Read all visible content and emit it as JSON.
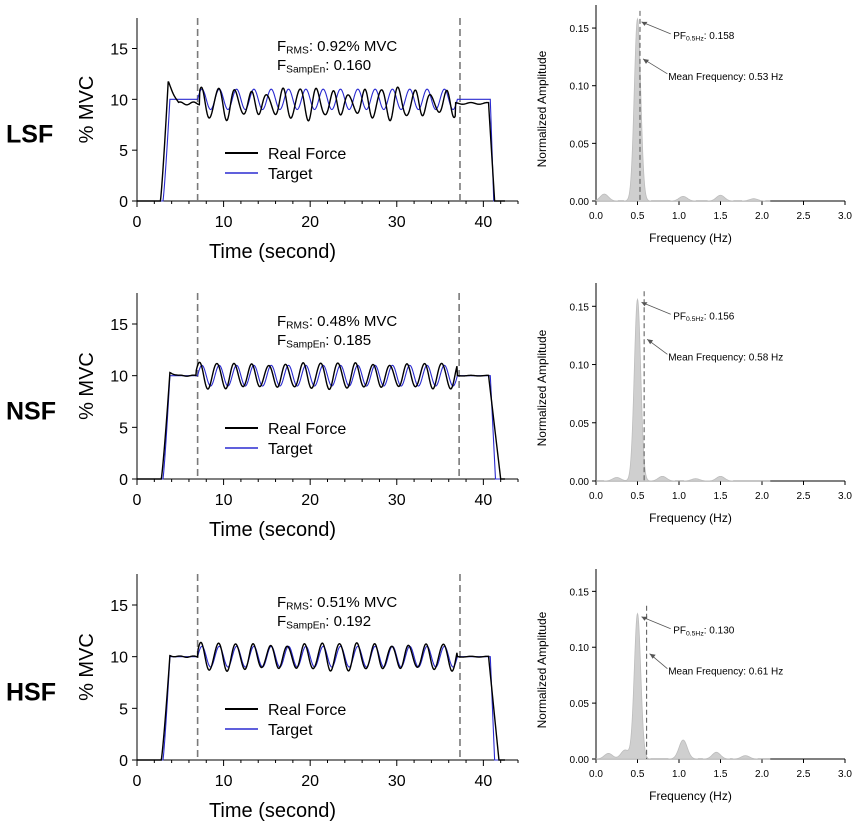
{
  "panels": [
    {
      "row_label": "LSF",
      "force_chart": {
        "type": "line",
        "xlabel": "Time (second)",
        "ylabel": "% MVC",
        "xlim": [
          0,
          44
        ],
        "ylim": [
          0,
          18
        ],
        "xticks": [
          0,
          10,
          20,
          30,
          40
        ],
        "yticks": [
          0,
          5,
          10,
          15
        ],
        "window_lines": [
          7,
          37.3
        ],
        "rms_prefix": "F",
        "rms_sub": "RMS",
        "rms_value": ": 0.92% MVC",
        "sampen_prefix": "F",
        "sampen_sub": "SampEn",
        "sampen_value": ": 0.160",
        "legend": [
          "Real Force",
          "Target"
        ],
        "series": [
          {
            "name": "Real Force",
            "color": "#000000",
            "profile": {
              "start": 2.7,
              "rise_end": 3.6,
              "overshoot": 11.7,
              "osc_start": 7.2,
              "osc_end": 36.8,
              "fall_start": 40.6,
              "fall_end": 41.3,
              "freq": 0.53,
              "amp": 1.25,
              "level": 9.6,
              "phase": 0.6,
              "irregular": 0.55
            }
          },
          {
            "name": "Target",
            "color": "#2b2bd0",
            "profile": {
              "start": 3.0,
              "rise_end": 3.8,
              "overshoot": 10.0,
              "osc_start": 7.0,
              "osc_end": 37.0,
              "fall_start": 40.8,
              "fall_end": 41.2,
              "freq": 0.5,
              "amp": 1.0,
              "level": 10.0,
              "phase": 0.0,
              "irregular": 0.0
            }
          }
        ]
      },
      "spectrum_chart": {
        "type": "area",
        "xlabel": "Frequency (Hz)",
        "ylabel": "Normalized Amplitude",
        "xlim": [
          0.0,
          3.0
        ],
        "ylim": [
          0.0,
          0.17
        ],
        "xticks": [
          "0.0",
          "0.5",
          "1.0",
          "1.5",
          "2.0",
          "2.5",
          "3.0"
        ],
        "yticks": [
          "0.00",
          "0.05",
          "0.10",
          "0.15"
        ],
        "peak_freq": 0.5,
        "peak_value": 0.158,
        "mean_freq": 0.53,
        "secondary_peaks": [
          [
            0.1,
            0.006
          ],
          [
            1.05,
            0.004
          ],
          [
            1.5,
            0.005
          ],
          [
            1.9,
            0.002
          ]
        ],
        "pf_label_prefix": "PF",
        "pf_label_sub": "0.5Hz",
        "pf_label_value": ": 0.158",
        "mean_label": "Mean Frequency: 0.53 Hz"
      }
    },
    {
      "row_label": "NSF",
      "force_chart": {
        "type": "line",
        "xlabel": "Time (second)",
        "ylabel": "% MVC",
        "xlim": [
          0,
          44
        ],
        "ylim": [
          0,
          18
        ],
        "xticks": [
          0,
          10,
          20,
          30,
          40
        ],
        "yticks": [
          0,
          5,
          10,
          15
        ],
        "window_lines": [
          7,
          37.2
        ],
        "rms_prefix": "F",
        "rms_sub": "RMS",
        "rms_value": ": 0.48% MVC",
        "sampen_prefix": "F",
        "sampen_sub": "SampEn",
        "sampen_value": ": 0.185",
        "legend": [
          "Real Force",
          "Target"
        ],
        "series": [
          {
            "name": "Real Force",
            "color": "#000000",
            "profile": {
              "start": 2.8,
              "rise_end": 3.8,
              "overshoot": 10.3,
              "osc_start": 6.8,
              "osc_end": 37.0,
              "fall_start": 40.6,
              "fall_end": 42.0,
              "freq": 0.5,
              "amp": 1.15,
              "level": 10.0,
              "phase": 0.3,
              "irregular": 0.2
            }
          },
          {
            "name": "Target",
            "color": "#2b2bd0",
            "profile": {
              "start": 3.0,
              "rise_end": 3.8,
              "overshoot": 10.0,
              "osc_start": 7.0,
              "osc_end": 37.0,
              "fall_start": 40.8,
              "fall_end": 41.4,
              "freq": 0.5,
              "amp": 1.0,
              "level": 10.0,
              "phase": 0.0,
              "irregular": 0.0
            }
          }
        ]
      },
      "spectrum_chart": {
        "type": "area",
        "xlabel": "Frequency (Hz)",
        "ylabel": "Normalized Amplitude",
        "xlim": [
          0.0,
          3.0
        ],
        "ylim": [
          0.0,
          0.17
        ],
        "xticks": [
          "0.0",
          "0.5",
          "1.0",
          "1.5",
          "2.0",
          "2.5",
          "3.0"
        ],
        "yticks": [
          "0.00",
          "0.05",
          "0.10",
          "0.15"
        ],
        "peak_freq": 0.5,
        "peak_value": 0.156,
        "mean_freq": 0.58,
        "secondary_peaks": [
          [
            0.25,
            0.003
          ],
          [
            0.8,
            0.004
          ],
          [
            1.2,
            0.002
          ],
          [
            1.5,
            0.004
          ]
        ],
        "pf_label_prefix": "PF",
        "pf_label_sub": "0.5Hz",
        "pf_label_value": ": 0.156",
        "mean_label": "Mean Frequency: 0.58 Hz"
      }
    },
    {
      "row_label": "HSF",
      "force_chart": {
        "type": "line",
        "xlabel": "Time (second)",
        "ylabel": "% MVC",
        "xlim": [
          0,
          44
        ],
        "ylim": [
          0,
          18
        ],
        "xticks": [
          0,
          10,
          20,
          30,
          40
        ],
        "yticks": [
          0,
          5,
          10,
          15
        ],
        "window_lines": [
          7,
          37.3
        ],
        "rms_prefix": "F",
        "rms_sub": "RMS",
        "rms_value": ": 0.51% MVC",
        "sampen_prefix": "F",
        "sampen_sub": "SampEn",
        "sampen_value": ": 0.192",
        "legend": [
          "Real Force",
          "Target"
        ],
        "series": [
          {
            "name": "Real Force",
            "color": "#000000",
            "profile": {
              "start": 2.8,
              "rise_end": 3.8,
              "overshoot": 10.1,
              "osc_start": 7.0,
              "osc_end": 37.0,
              "fall_start": 40.6,
              "fall_end": 41.8,
              "freq": 0.5,
              "amp": 1.2,
              "level": 10.0,
              "phase": 0.35,
              "irregular": 0.25
            }
          },
          {
            "name": "Target",
            "color": "#2b2bd0",
            "profile": {
              "start": 3.0,
              "rise_end": 3.8,
              "overshoot": 10.0,
              "osc_start": 7.0,
              "osc_end": 37.0,
              "fall_start": 40.8,
              "fall_end": 41.3,
              "freq": 0.5,
              "amp": 1.0,
              "level": 10.0,
              "phase": 0.0,
              "irregular": 0.0
            }
          }
        ]
      },
      "spectrum_chart": {
        "type": "area",
        "xlabel": "Frequency (Hz)",
        "ylabel": "Normalized Amplitude",
        "xlim": [
          0.0,
          3.0
        ],
        "ylim": [
          0.0,
          0.17
        ],
        "xticks": [
          "0.0",
          "0.5",
          "1.0",
          "1.5",
          "2.0",
          "2.5",
          "3.0"
        ],
        "yticks": [
          "0.00",
          "0.05",
          "0.10",
          "0.15"
        ],
        "peak_freq": 0.5,
        "peak_value": 0.13,
        "mean_freq": 0.61,
        "secondary_peaks": [
          [
            0.15,
            0.005
          ],
          [
            0.35,
            0.008
          ],
          [
            1.05,
            0.017
          ],
          [
            1.45,
            0.006
          ],
          [
            1.8,
            0.003
          ]
        ],
        "pf_label_prefix": "PF",
        "pf_label_sub": "0.5Hz",
        "pf_label_value": ": 0.130",
        "mean_label": "Mean Frequency: 0.61 Hz"
      }
    }
  ]
}
